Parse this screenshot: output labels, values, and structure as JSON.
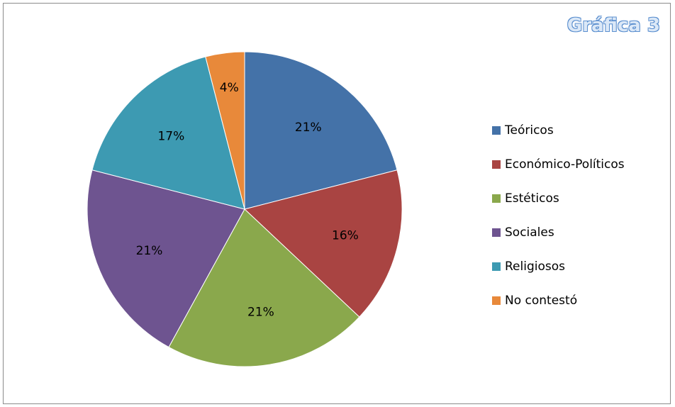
{
  "chart_data": {
    "type": "pie",
    "title": "Gráfica 3",
    "categories": [
      "Teóricos",
      "Económico-Políticos",
      "Estéticos",
      "Sociales",
      "Religiosos",
      "No contestó"
    ],
    "values": [
      21,
      16,
      21,
      21,
      17,
      4
    ],
    "labels": [
      "21%",
      "16%",
      "21%",
      "21%",
      "17%",
      "4%"
    ],
    "colors": [
      "#4472a8",
      "#a94442",
      "#8aa84c",
      "#6e5490",
      "#3d9ab2",
      "#e8893a"
    ],
    "legend_position": "right"
  }
}
